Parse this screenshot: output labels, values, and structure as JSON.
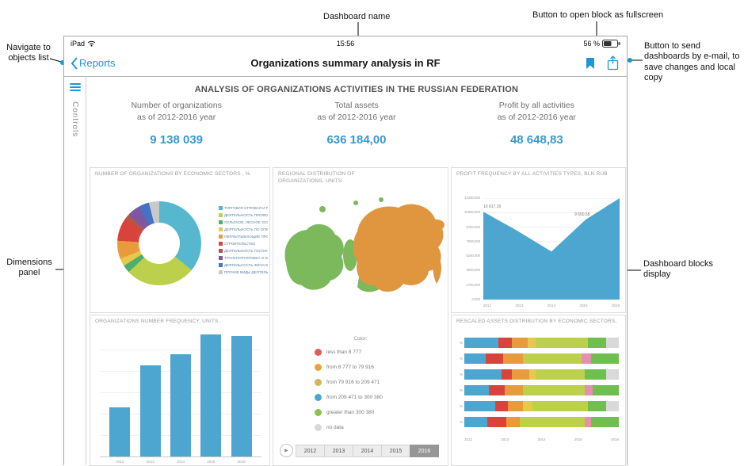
{
  "colors": {
    "accent": "#1f97d4",
    "kpi_value": "#3a99cc",
    "chart_blue": "#4da6cf"
  },
  "annotations": {
    "navigate_objects": "Navigate to objects list",
    "dashboard_name": "Dashboard name",
    "fullscreen_button": "Button to open block as fullscreen",
    "send_button": "Button to send dashboards by e-mail, to save changes and local copy",
    "dimensions_panel": "Dimensions panel",
    "blocks_display": "Dashboard blocks display"
  },
  "status_bar": {
    "device": "iPad",
    "time": "15:56",
    "battery": "56 %"
  },
  "nav_bar": {
    "back_label": "Reports",
    "title": "Organizations summary analysis in RF"
  },
  "sidebar": {
    "label": "Controls"
  },
  "dashboard": {
    "title": "ANALYSIS OF ORGANIZATIONS ACTIVITIES IN THE RUSSIAN FEDERATION",
    "kpis": [
      {
        "label1": "Number of organizations",
        "label2": "as of 2012-2016 year",
        "value": "9 138 039"
      },
      {
        "label1": "Total assets",
        "label2": "as of 2012-2016 year",
        "value": "636 184,00"
      },
      {
        "label1": "Profit by all activities",
        "label2": "as of 2012-2016 year",
        "value": "48 648,83"
      }
    ]
  },
  "map": {
    "title": "REGIONAL DISTRIBUTION OF ORGANIZATIONS, UNITS",
    "legend_title": "Color:",
    "play_icon": "▶",
    "legend": [
      {
        "color": "#e05c5c",
        "label": "less than 8 777"
      },
      {
        "color": "#e8a33d",
        "label": "from 8 777 to 79 916"
      },
      {
        "color": "#d2b45a",
        "label": "from 79 916 to 209 471"
      },
      {
        "color": "#4da6cf",
        "label": "from 209 471 to 300 380"
      },
      {
        "color": "#8cc152",
        "label": "greater than 300 380"
      },
      {
        "color": "#d8d8d8",
        "label": "no data"
      }
    ],
    "years": [
      "2012",
      "2013",
      "2014",
      "2015",
      "2016"
    ],
    "selected_year": "2016",
    "region_colors": {
      "west": "#7cb95c",
      "east": "#e0953f"
    }
  },
  "chart_data": [
    {
      "type": "pie",
      "title": "NUMBER OF ORGANIZATIONS BY ECONOMIC SECTORS , %",
      "series": [
        {
          "label": "ТОРГОВЛЯ ОПТОВАЯ И РОЗНИЧНАЯ",
          "value": 36,
          "color": "#56b7ce"
        },
        {
          "label": "ДЕЯТЕЛЬНОСТЬ ПРОФЕССИОНАЛЬНАЯ, НАУЧНАЯ",
          "value": 27,
          "color": "#bdd04c"
        },
        {
          "label": "СЕЛЬСКОЕ, ЛЕСНОЕ ХОЗЯЙСТВО",
          "value": 3,
          "color": "#4caf6e"
        },
        {
          "label": "ДЕЯТЕЛЬНОСТЬ ПО ОПЕРАЦИЯМ С НЕДВИЖИМЫМ",
          "value": 3,
          "color": "#e6c84c"
        },
        {
          "label": "ОБРАБАТЫВАЮЩИЕ ПРОИЗВОДСТВА",
          "value": 7,
          "color": "#e89b3c"
        },
        {
          "label": "СТРОИТЕЛЬСТВО",
          "value": 9,
          "color": "#d8443c"
        },
        {
          "label": "ДЕЯТЕЛЬНОСТЬ ГОСТИНИЦ И ОБЩЕПИТА",
          "value": 2,
          "color": "#b5544a"
        },
        {
          "label": "ТРАНСПОРТИРОВКА И ХРАНЕНИЕ",
          "value": 5,
          "color": "#7e57a2"
        },
        {
          "label": "ДЕЯТЕЛЬНОСТЬ ФИНАНСОВАЯ И СТРАХОВАЯ",
          "value": 4,
          "color": "#4472c4"
        },
        {
          "label": "ПРОЧИЕ ВИДЫ ДЕЯТЕЛЬНОСТИ",
          "value": 4,
          "color": "#c9c9c9"
        }
      ]
    },
    {
      "type": "bar",
      "title": "ORGANIZATIONS NUMBER FREQUENCY, UNITS.",
      "categories": [
        "2012",
        "2013",
        "2014",
        "2015",
        "2016"
      ],
      "values": [
        40,
        75,
        84,
        100,
        99
      ],
      "ylim": [
        0,
        100
      ]
    },
    {
      "type": "area",
      "title": "PROFIT FREQUENCY BY ALL ACTIVITIES TYPES, BLN RUB",
      "x": [
        "2012",
        "2013",
        "2014",
        "2015",
        "2016"
      ],
      "values": [
        10617.1,
        8300,
        5800,
        9650,
        12250
      ],
      "ylim": [
        0,
        12250
      ],
      "yticks": [
        "12250,000",
        "10500,000",
        "8750,000",
        "7000,000",
        "5250,000",
        "3500,000",
        "1750,000",
        "0,000"
      ],
      "point_labels": [
        {
          "index": 0,
          "text": "10 617,10"
        },
        {
          "index": 3,
          "text": "9 650,58"
        }
      ],
      "color": "#4da6cf"
    },
    {
      "type": "stacked-bar-horizontal",
      "title": "RESCALED ASSETS DISTRIBUTION BY ECONOMIC SECTORS,",
      "row_label": "%",
      "xlabels": [
        "2012",
        "2013",
        "2014",
        "2015",
        "2016"
      ],
      "rows": [
        {
          "segments": [
            {
              "c": "#4da6cf",
              "v": 22
            },
            {
              "c": "#d8443c",
              "v": 9
            },
            {
              "c": "#e89b3c",
              "v": 10
            },
            {
              "c": "#e6c84c",
              "v": 5
            },
            {
              "c": "#bdd04c",
              "v": 34
            },
            {
              "c": "#6fbf4f",
              "v": 12
            },
            {
              "c": "#d9d9d9",
              "v": 8
            }
          ]
        },
        {
          "segments": [
            {
              "c": "#4da6cf",
              "v": 14
            },
            {
              "c": "#d8443c",
              "v": 11
            },
            {
              "c": "#e89b3c",
              "v": 13
            },
            {
              "c": "#bdd04c",
              "v": 38
            },
            {
              "c": "#e58fb1",
              "v": 6
            },
            {
              "c": "#6fbf4f",
              "v": 18
            }
          ]
        },
        {
          "segments": [
            {
              "c": "#4da6cf",
              "v": 24
            },
            {
              "c": "#d8443c",
              "v": 7
            },
            {
              "c": "#e89b3c",
              "v": 11
            },
            {
              "c": "#e6c84c",
              "v": 4
            },
            {
              "c": "#bdd04c",
              "v": 32
            },
            {
              "c": "#6fbf4f",
              "v": 14
            },
            {
              "c": "#d9d9d9",
              "v": 8
            }
          ]
        },
        {
          "segments": [
            {
              "c": "#4da6cf",
              "v": 16
            },
            {
              "c": "#d8443c",
              "v": 10
            },
            {
              "c": "#e89b3c",
              "v": 12
            },
            {
              "c": "#bdd04c",
              "v": 40
            },
            {
              "c": "#e58fb1",
              "v": 5
            },
            {
              "c": "#6fbf4f",
              "v": 17
            }
          ]
        },
        {
          "segments": [
            {
              "c": "#4da6cf",
              "v": 20
            },
            {
              "c": "#d8443c",
              "v": 8
            },
            {
              "c": "#e89b3c",
              "v": 10
            },
            {
              "c": "#e6c84c",
              "v": 6
            },
            {
              "c": "#bdd04c",
              "v": 36
            },
            {
              "c": "#6fbf4f",
              "v": 12
            },
            {
              "c": "#d9d9d9",
              "v": 8
            }
          ]
        },
        {
          "segments": [
            {
              "c": "#4da6cf",
              "v": 15
            },
            {
              "c": "#d8443c",
              "v": 12
            },
            {
              "c": "#e89b3c",
              "v": 9
            },
            {
              "c": "#bdd04c",
              "v": 42
            },
            {
              "c": "#e58fb1",
              "v": 4
            },
            {
              "c": "#6fbf4f",
              "v": 18
            }
          ]
        }
      ]
    }
  ]
}
